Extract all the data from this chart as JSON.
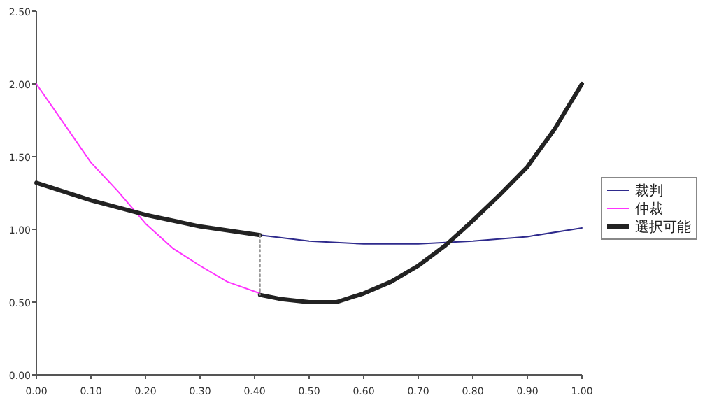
{
  "chart_data": {
    "type": "line",
    "xlim": [
      0,
      1
    ],
    "ylim": [
      0,
      2.5
    ],
    "xticks": [
      {
        "value": 0,
        "label": "0.00"
      },
      {
        "value": 0.1,
        "label": "0.10"
      },
      {
        "value": 0.2,
        "label": "0.20"
      },
      {
        "value": 0.3,
        "label": "0.30"
      },
      {
        "value": 0.4,
        "label": "0.40"
      },
      {
        "value": 0.5,
        "label": "0.50"
      },
      {
        "value": 0.6,
        "label": "0.60"
      },
      {
        "value": 0.7,
        "label": "0.70"
      },
      {
        "value": 0.8,
        "label": "0.80"
      },
      {
        "value": 0.9,
        "label": "0.90"
      },
      {
        "value": 1,
        "label": "1.00"
      }
    ],
    "yticks": [
      {
        "value": 0,
        "label": "0.00"
      },
      {
        "value": 0.5,
        "label": "0.50"
      },
      {
        "value": 1,
        "label": "1.00"
      },
      {
        "value": 1.5,
        "label": "1.50"
      },
      {
        "value": 2,
        "label": "2.00"
      },
      {
        "value": 2.5,
        "label": "2.50"
      }
    ],
    "grid": false,
    "legend": "right",
    "series": [
      {
        "name": "裁判",
        "color": "#2e2a8c",
        "x": [
          0.41,
          0.5,
          0.6,
          0.7,
          0.8,
          0.9,
          1.0
        ],
        "values": [
          0.96,
          0.92,
          0.9,
          0.9,
          0.92,
          0.95,
          1.01
        ]
      },
      {
        "name": "仲裁",
        "color": "#ff33ff",
        "x": [
          0,
          0.05,
          0.1,
          0.15,
          0.2,
          0.25,
          0.3,
          0.35,
          0.41
        ],
        "values": [
          2.0,
          1.73,
          1.46,
          1.26,
          1.04,
          0.87,
          0.75,
          0.64,
          0.56
        ]
      },
      {
        "name": "選択可能",
        "color": "#222222",
        "x": [
          0,
          0.1,
          0.2,
          0.3,
          0.41
        ],
        "values": [
          1.32,
          1.2,
          1.1,
          1.02,
          0.96
        ]
      },
      {
        "color": "#222222",
        "x": [
          0.41,
          0.45,
          0.5,
          0.55,
          0.6,
          0.65,
          0.7,
          0.75,
          0.8,
          0.85,
          0.9,
          0.95,
          1.0
        ],
        "values": [
          0.55,
          0.52,
          0.5,
          0.5,
          0.56,
          0.64,
          0.75,
          0.89,
          1.06,
          1.24,
          1.43,
          1.69,
          2.0
        ]
      },
      {
        "color": "#999999",
        "line_style": "dotted",
        "x": [
          0.41,
          0.41
        ],
        "values": [
          0.96,
          0.55
        ]
      }
    ]
  }
}
